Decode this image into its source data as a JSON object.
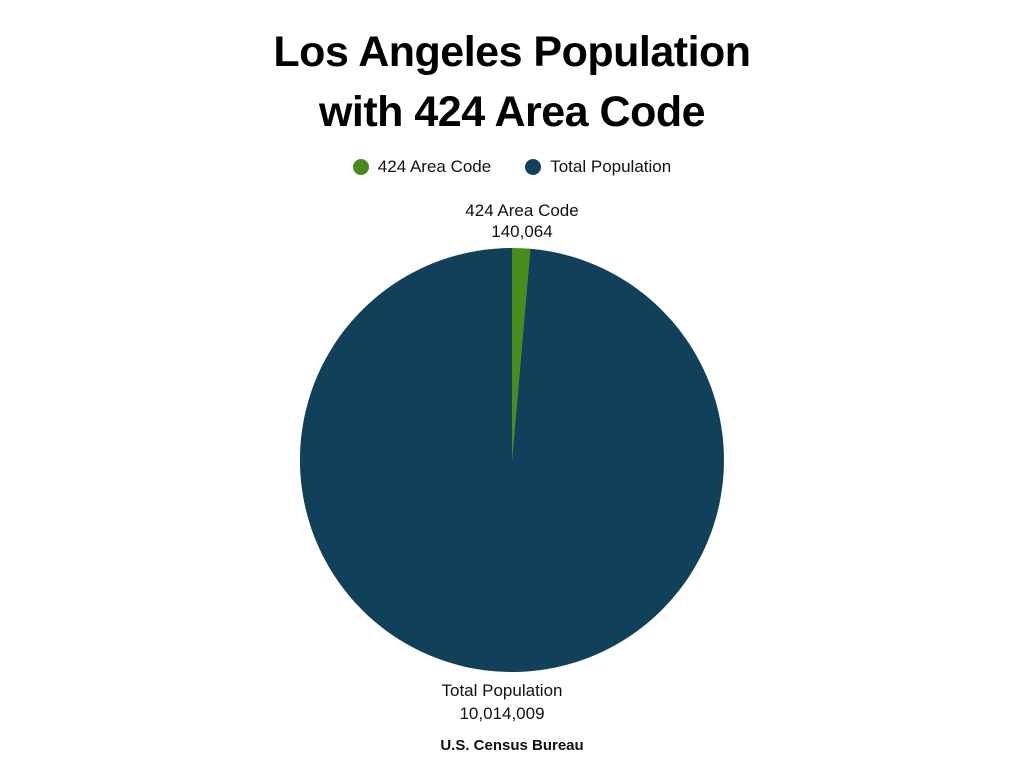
{
  "chart_data": {
    "type": "pie",
    "title": [
      "Los Angeles Population",
      "with 424 Area Code"
    ],
    "legend_position": "top",
    "slices": [
      {
        "label": "424 Area Code",
        "value": 140064,
        "value_text": "140,064",
        "color": "#4a8c1c"
      },
      {
        "label": "Total Population",
        "value": 10014009,
        "value_text": "10,014,009",
        "color": "#11405a"
      }
    ],
    "source": "U.S. Census Bureau"
  }
}
